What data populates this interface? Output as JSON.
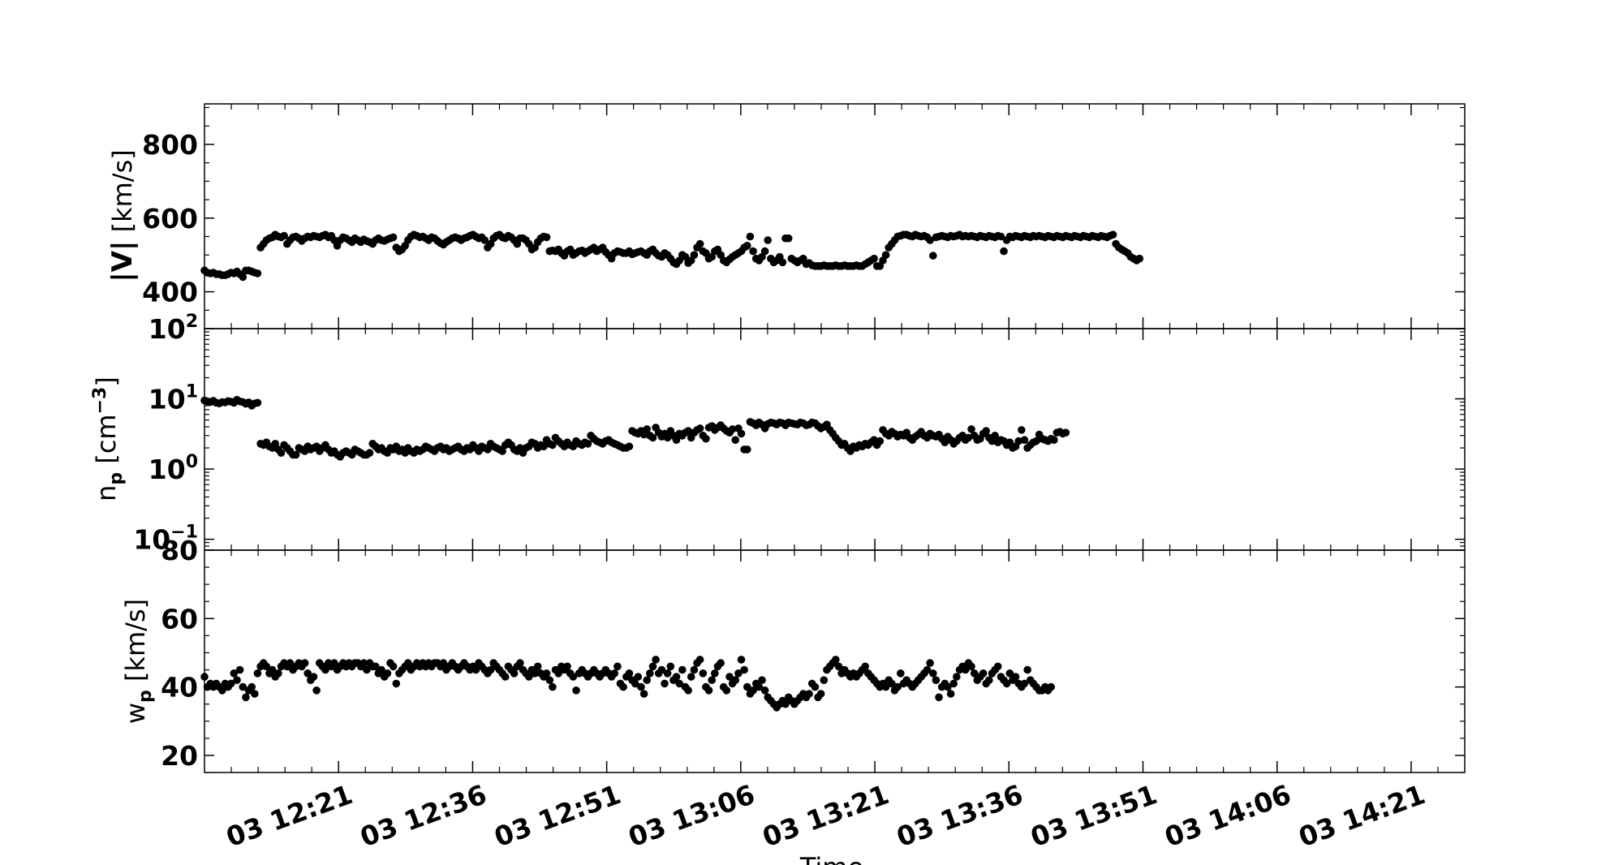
{
  "chart_data": [
    {
      "type": "scatter",
      "ylabel_main": "|V|",
      "ylabel_unit": " [km/s]",
      "ylim": [
        300,
        910
      ],
      "yscale": "linear",
      "yticks": [
        400,
        600,
        800
      ],
      "ytick_labels": [
        "400",
        "600",
        "800"
      ],
      "marker_color": "#000000",
      "series": [
        {
          "x_start": "12:06",
          "x_step_min": 0.33,
          "values": [
            458,
            452,
            450,
            452,
            448,
            448,
            445,
            445,
            448,
            452,
            450,
            455,
            448,
            440,
            458,
            458,
            455,
            452,
            450,
            520,
            530,
            540,
            545,
            548,
            555,
            550,
            548,
            552,
            530,
            540,
            548,
            550,
            545,
            538,
            545,
            550,
            548,
            552,
            550,
            548,
            552,
            555,
            548,
            552,
            540,
            525,
            540,
            548,
            545,
            540,
            535,
            545,
            540,
            535,
            542,
            538,
            535,
            530,
            540,
            545,
            540,
            538,
            542,
            545,
            548,
            520,
            510,
            515,
            525,
            540,
            550,
            555,
            552,
            548,
            550,
            545,
            540,
            548,
            545,
            538,
            532,
            528,
            535,
            540,
            545,
            548,
            545,
            540,
            545,
            548,
            552,
            555,
            550,
            545,
            548,
            540,
            520,
            530,
            545,
            552,
            555,
            548,
            545,
            552,
            548,
            540,
            530,
            545,
            545,
            540,
            530,
            515,
            520,
            535,
            545,
            550,
            548,
            510,
            512,
            510,
            515,
            505,
            498,
            510,
            515,
            500,
            505,
            510,
            512,
            505,
            510,
            515,
            520,
            510,
            515,
            520,
            508,
            500,
            490,
            505,
            510,
            508,
            505,
            505,
            510,
            502,
            505,
            508,
            510,
            505,
            500,
            510,
            515,
            505,
            498,
            495,
            505,
            500,
            490,
            480,
            475,
            485,
            500,
            495,
            478,
            485,
            500,
            520,
            530,
            510,
            505,
            490,
            495,
            510,
            515,
            500,
            485,
            480,
            488,
            495,
            500,
            505,
            510,
            520,
            525,
            550,
            510,
            490,
            485,
            495,
            510,
            540,
            490,
            480,
            485,
            495,
            480,
            545,
            545,
            490,
            485,
            480,
            485,
            490,
            475,
            478,
            472,
            470,
            470,
            470,
            472,
            470,
            470,
            470,
            472,
            470,
            470,
            472,
            470,
            470,
            470,
            472,
            470,
            470,
            475,
            480,
            485,
            490,
            470,
            470,
            485,
            500,
            520,
            530,
            540,
            550,
            552,
            555,
            555,
            552,
            550,
            555,
            552,
            550,
            552,
            548,
            540,
            498,
            548,
            550,
            552,
            550,
            548,
            552,
            550,
            552,
            555,
            550,
            552,
            550,
            552,
            550,
            548,
            552,
            550,
            548,
            552,
            550,
            548,
            552,
            550,
            510,
            540,
            550,
            548,
            552,
            550,
            548,
            552,
            550,
            548,
            552,
            550,
            552,
            550,
            548,
            552,
            550,
            548,
            552,
            550,
            548,
            552,
            550,
            548,
            552,
            550,
            548,
            552,
            550,
            548,
            552,
            550,
            548,
            552,
            550,
            548,
            552,
            555,
            530,
            520,
            515,
            510,
            505,
            495,
            490,
            485,
            490
          ]
        }
      ],
      "x_axis_labels": [
        "03 12:21",
        "03 12:36",
        "03 12:51",
        "03 13:06",
        "03 13:21",
        "03 13:36",
        "03 13:51",
        "03 14:06",
        "03 14:21"
      ]
    },
    {
      "type": "scatter",
      "ylabel_main": "n",
      "ylabel_sub": "p",
      "ylabel_unit": " [cm",
      "ylabel_sup": "−3",
      "ylabel_close": "]",
      "ylim": [
        0.07,
        100
      ],
      "yscale": "log",
      "yticks": [
        0.1,
        1,
        10,
        100
      ],
      "ytick_bases": [
        "10",
        "10",
        "10",
        "10"
      ],
      "ytick_exps": [
        "−1",
        "0",
        "1",
        "2"
      ],
      "marker_color": "#000000",
      "series": [
        {
          "x_start": "12:06",
          "x_step_min": 0.33,
          "values": [
            9.5,
            9.2,
            9.0,
            9.4,
            8.8,
            8.6,
            9.0,
            8.9,
            9.3,
            9.1,
            8.8,
            9.7,
            9.2,
            9.0,
            8.5,
            8.9,
            8.0,
            8.6,
            8.8,
            2.3,
            2.2,
            2.4,
            2.1,
            2.0,
            2.3,
            1.9,
            1.7,
            2.2,
            2.0,
            1.8,
            1.6,
            1.6,
            2.0,
            1.9,
            1.8,
            2.1,
            1.9,
            2.0,
            2.1,
            1.8,
            2.0,
            2.2,
            1.9,
            1.7,
            1.8,
            1.6,
            1.5,
            1.7,
            1.8,
            1.7,
            1.6,
            1.9,
            1.8,
            1.7,
            1.6,
            1.6,
            1.7,
            2.3,
            2.1,
            1.9,
            2.0,
            1.8,
            1.7,
            2.0,
            1.9,
            2.1,
            1.8,
            1.9,
            1.7,
            2.0,
            1.8,
            1.7,
            1.9,
            1.8,
            1.9,
            2.1,
            2.0,
            1.9,
            1.8,
            2.0,
            2.1,
            1.9,
            2.0,
            1.8,
            1.9,
            2.0,
            2.1,
            1.9,
            1.8,
            2.0,
            1.9,
            2.2,
            2.0,
            1.8,
            2.1,
            2.0,
            1.9,
            2.3,
            2.1,
            2.0,
            1.9,
            1.8,
            2.2,
            2.4,
            2.2,
            1.9,
            1.8,
            2.0,
            1.7,
            2.0,
            2.1,
            2.4,
            2.3,
            2.0,
            2.2,
            2.1,
            2.6,
            2.3,
            2.2,
            2.8,
            2.5,
            2.3,
            2.1,
            2.4,
            2.2,
            2.1,
            2.5,
            2.3,
            2.2,
            2.4,
            2.3,
            3.0,
            2.7,
            2.5,
            2.4,
            2.3,
            2.5,
            2.6,
            2.4,
            2.3,
            2.2,
            2.1,
            2.0,
            2.0,
            2.1,
            3.5,
            3.3,
            3.2,
            3.5,
            3.1,
            3.7,
            3.0,
            2.8,
            3.9,
            3.3,
            2.9,
            3.2,
            2.8,
            3.5,
            3.0,
            2.6,
            3.2,
            3.0,
            3.3,
            3.5,
            2.8,
            3.3,
            3.6,
            3.8,
            3.0,
            2.7,
            3.9,
            4.1,
            3.6,
            3.9,
            4.2,
            3.8,
            3.5,
            3.3,
            3.7,
            2.6,
            3.8,
            3.2,
            1.9,
            1.9,
            4.7,
            4.5,
            4.2,
            4.6,
            4.3,
            3.8,
            4.4,
            4.6,
            4.5,
            4.3,
            4.6,
            4.5,
            4.2,
            4.6,
            4.5,
            4.4,
            4.3,
            4.6,
            4.5,
            4.2,
            4.3,
            4.6,
            4.5,
            4.1,
            3.8,
            4.0,
            4.3,
            3.6,
            3.2,
            2.8,
            2.5,
            2.2,
            2.3,
            2.0,
            1.8,
            2.1,
            2.0,
            2.2,
            2.1,
            2.3,
            2.2,
            2.4,
            2.6,
            2.2,
            2.5,
            3.6,
            3.2,
            3.0,
            3.4,
            3.2,
            2.9,
            3.1,
            3.0,
            3.3,
            2.8,
            2.6,
            2.9,
            3.1,
            3.4,
            3.0,
            2.8,
            3.2,
            3.0,
            2.9,
            3.1,
            2.7,
            2.4,
            2.9,
            2.6,
            2.3,
            2.5,
            2.8,
            3.0,
            2.6,
            2.8,
            3.7,
            3.0,
            2.6,
            2.7,
            3.2,
            3.5,
            2.8,
            2.5,
            3.0,
            2.4,
            2.6,
            2.5,
            2.2,
            2.4,
            2.0,
            2.1,
            2.5,
            3.6,
            2.6,
            2.0,
            2.2,
            2.4,
            2.5,
            3.1,
            2.7,
            2.6,
            2.5,
            2.7,
            2.6,
            3.3,
            3.4,
            3.2,
            3.3
          ]
        }
      ]
    },
    {
      "type": "scatter",
      "ylabel_main": "w",
      "ylabel_sub": "p",
      "ylabel_unit": " [km/s]",
      "ylim": [
        15,
        80
      ],
      "yscale": "linear",
      "yticks": [
        20,
        40,
        60,
        80
      ],
      "ytick_labels": [
        "20",
        "40",
        "60",
        "80"
      ],
      "marker_color": "#000000",
      "series": [
        {
          "x_start": "12:06",
          "x_step_min": 0.33,
          "values": [
            43,
            40,
            41,
            40,
            41,
            40,
            39,
            41,
            40,
            41,
            44,
            42,
            45,
            40,
            37,
            39,
            40,
            38,
            44,
            46,
            47,
            46,
            44,
            45,
            43,
            44,
            46,
            47,
            46,
            47,
            45,
            46,
            47,
            46,
            47,
            44,
            42,
            43,
            39,
            47,
            46,
            45,
            47,
            46,
            47,
            45,
            46,
            47,
            46,
            47,
            46,
            47,
            47,
            46,
            47,
            45,
            47,
            46,
            46,
            44,
            45,
            43,
            44,
            47,
            46,
            41,
            44,
            45,
            46,
            47,
            45,
            46,
            47,
            46,
            47,
            46,
            47,
            46,
            47,
            47,
            46,
            47,
            45,
            46,
            47,
            46,
            45,
            46,
            47,
            46,
            45,
            46,
            45,
            47,
            46,
            45,
            44,
            45,
            47,
            46,
            45,
            44,
            43,
            46,
            45,
            44,
            46,
            47,
            45,
            44,
            43,
            45,
            44,
            46,
            44,
            43,
            44,
            42,
            40,
            45,
            44,
            46,
            45,
            46,
            44,
            43,
            39,
            44,
            45,
            44,
            43,
            44,
            45,
            44,
            43,
            44,
            45,
            44,
            43,
            44,
            46,
            41,
            40,
            43,
            44,
            42,
            41,
            43,
            40,
            38,
            42,
            44,
            46,
            48,
            44,
            45,
            41,
            44,
            46,
            42,
            43,
            41,
            45,
            40,
            39,
            43,
            45,
            47,
            48,
            44,
            40,
            39,
            42,
            44,
            46,
            47,
            40,
            39,
            43,
            41,
            42,
            44,
            48,
            45,
            40,
            38,
            39,
            41,
            40,
            42,
            39,
            37,
            36,
            35,
            34,
            35,
            36,
            35,
            37,
            36,
            35,
            36,
            37,
            38,
            37,
            38,
            41,
            40,
            37,
            38,
            42,
            45,
            46,
            47,
            48,
            46,
            44,
            45,
            44,
            43,
            44,
            43,
            44,
            45,
            46,
            44,
            43,
            42,
            41,
            40,
            41,
            40,
            42,
            41,
            39,
            40,
            44,
            41,
            42,
            41,
            40,
            41,
            42,
            43,
            44,
            45,
            47,
            44,
            42,
            37,
            40,
            41,
            40,
            38,
            41,
            43,
            45,
            46,
            45,
            47,
            46,
            44,
            42,
            43,
            44,
            41,
            42,
            44,
            45,
            46,
            43,
            42,
            41,
            44,
            42,
            43,
            41,
            40,
            41,
            45,
            42,
            41,
            40,
            39,
            39,
            40,
            39,
            40
          ]
        }
      ]
    }
  ],
  "x_axis_label": "Time"
}
